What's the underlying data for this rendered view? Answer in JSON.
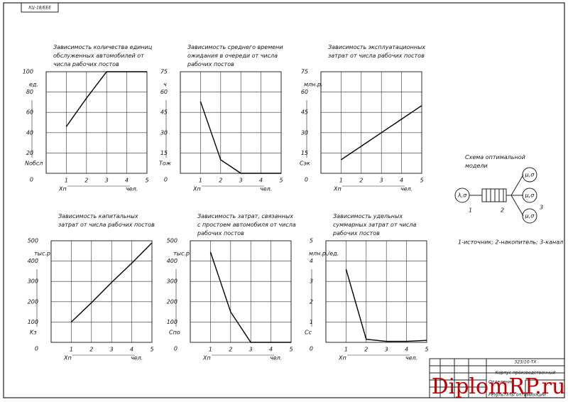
{
  "chart_data": [
    {
      "type": "line",
      "title": "Зависимость количества единиц обслуженных автомобилей от числа рабочих постов",
      "y_label": "ед.",
      "y_var": "Nобсл",
      "x_var": "Xп",
      "x_unit": "чел.",
      "x": [
        1,
        2,
        3,
        4,
        5
      ],
      "values": [
        46,
        74,
        100,
        100,
        100
      ],
      "xlim": [
        0,
        5
      ],
      "xticks": [
        1,
        2,
        3,
        4,
        5
      ],
      "ylim": [
        0,
        100
      ],
      "yticks": [
        0,
        20,
        40,
        60,
        80,
        100
      ],
      "grid": true,
      "color": "#000000"
    },
    {
      "type": "line",
      "title": "Зависимость среднего времени ожидания в очереди от числа рабочих постов",
      "y_label": "ч",
      "y_var": "Tож",
      "x_var": "Xп",
      "x_unit": "чел.",
      "x": [
        1,
        2,
        3,
        4,
        5
      ],
      "values": [
        53,
        10,
        0,
        0,
        0
      ],
      "xlim": [
        0,
        5
      ],
      "xticks": [
        1,
        2,
        3,
        4,
        5
      ],
      "ylim": [
        0,
        75
      ],
      "yticks": [
        0,
        15,
        30,
        45,
        60,
        75
      ],
      "grid": true,
      "color": "#000000"
    },
    {
      "type": "line",
      "title": "Зависимость эксплуатационных затрат от числа рабочих постов",
      "y_label": "млн.р.",
      "y_var": "Cэк",
      "x_var": "Xп",
      "x_unit": "чел.",
      "x": [
        1,
        2,
        3,
        4,
        5
      ],
      "values": [
        10,
        20,
        30,
        40,
        50
      ],
      "xlim": [
        0,
        5
      ],
      "xticks": [
        1,
        2,
        3,
        4,
        5
      ],
      "ylim": [
        0,
        75
      ],
      "yticks": [
        0,
        15,
        30,
        45,
        60,
        75
      ],
      "grid": true,
      "color": "#000000"
    },
    {
      "type": "line",
      "title": "Зависимость капитальных затрат от числа рабочих постов",
      "y_label": "тыс.р.",
      "y_var": "Kз",
      "x_var": "Xп",
      "x_unit": "чел.",
      "x": [
        1,
        2,
        3,
        4,
        5
      ],
      "values": [
        100,
        195,
        295,
        390,
        490
      ],
      "xlim": [
        0,
        5
      ],
      "xticks": [
        1,
        2,
        3,
        4,
        5
      ],
      "ylim": [
        0,
        500
      ],
      "yticks": [
        0,
        100,
        200,
        300,
        400,
        500
      ],
      "grid": true,
      "color": "#000000"
    },
    {
      "type": "line",
      "title": "Зависимость затрат, связанных с простоем автомобиля от числа рабочих постов",
      "y_label": "тыс.р.",
      "y_var": "Cпо",
      "x_var": "Xп",
      "x_unit": "чел.",
      "x": [
        1,
        2,
        3,
        4,
        5
      ],
      "values": [
        445,
        150,
        0,
        0,
        0
      ],
      "xlim": [
        0,
        5
      ],
      "xticks": [
        1,
        2,
        3,
        4,
        5
      ],
      "ylim": [
        0,
        500
      ],
      "yticks": [
        0,
        100,
        200,
        300,
        400,
        500
      ],
      "grid": true,
      "color": "#000000"
    },
    {
      "type": "line",
      "title": "Зависимость удельных суммарных затрат от числа рабочих постов",
      "y_label": "млн.р./ед.",
      "y_var": "Cс",
      "x_var": "Xп",
      "x_unit": "чел.",
      "x": [
        1,
        2,
        3,
        4,
        5
      ],
      "values": [
        3.6,
        0.15,
        0.05,
        0.05,
        0.1
      ],
      "xlim": [
        0,
        5
      ],
      "xticks": [
        1,
        2,
        3,
        4,
        5
      ],
      "ylim": [
        0,
        5
      ],
      "yticks": [
        0,
        1,
        2,
        3,
        4,
        5
      ],
      "grid": true,
      "color": "#000000"
    }
  ],
  "scheme": {
    "title": "Схема оптимальной модели",
    "source": "λ,σ",
    "channels": [
      "μ,σ",
      "μ,σ",
      "μ,σ"
    ],
    "numbers": [
      "1",
      "2",
      "3"
    ],
    "legend": "1-источник; 2-накопитель; 3-канал"
  },
  "stamp": {
    "corner": "ХЦ-18/ЕЕЕ",
    "code": "323/10-ТХ",
    "object": "Корпус производственный",
    "section": "Отделение",
    "sheet": "Результаты оптимизации",
    "watermark": "DiplomRP.ru"
  }
}
